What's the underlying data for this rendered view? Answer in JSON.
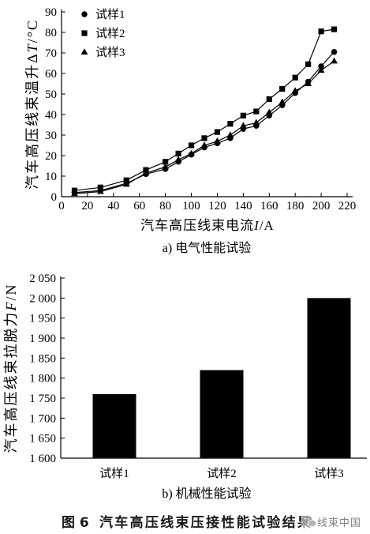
{
  "chart_data": [
    {
      "type": "line",
      "subcaption": "a) 电气性能试验",
      "xlabel": "汽车高压线束电流I/A",
      "ylabel": "汽车高压线束温升ΔT/°C",
      "xlim": [
        0,
        220
      ],
      "ylim": [
        0,
        90
      ],
      "xticks": [
        0,
        20,
        40,
        60,
        80,
        100,
        120,
        140,
        160,
        180,
        200,
        220
      ],
      "yticks": [
        0,
        10,
        20,
        30,
        40,
        50,
        60,
        70,
        80,
        90
      ],
      "grid": false,
      "legend_position": "top-left",
      "line_color": "#000000",
      "x": [
        10,
        30,
        50,
        65,
        80,
        90,
        100,
        110,
        120,
        130,
        140,
        150,
        160,
        170,
        180,
        190,
        200,
        210
      ],
      "series": [
        {
          "name": "试样1",
          "marker": "circle",
          "values": [
            2,
            3,
            6.5,
            11,
            13.5,
            17,
            20.5,
            24,
            26,
            28.5,
            33,
            34.5,
            39.5,
            44.5,
            50.5,
            56,
            63.5,
            70.5
          ]
        },
        {
          "name": "试样2",
          "marker": "square",
          "values": [
            3,
            4.5,
            8,
            13,
            17,
            21,
            25,
            28.5,
            31.5,
            35.5,
            39.5,
            41.5,
            47.5,
            52.5,
            58,
            64.5,
            80.5,
            81.5
          ]
        },
        {
          "name": "试样3",
          "marker": "triangle",
          "values": [
            1.5,
            2.5,
            6,
            11.5,
            14.5,
            18,
            21,
            25,
            27,
            30,
            34.5,
            36,
            41,
            46,
            51.5,
            55,
            61.5,
            66
          ]
        }
      ]
    },
    {
      "type": "bar",
      "subcaption": "b) 机械性能试验",
      "ylabel": "汽车高压线束拉脱力F/N",
      "ylim": [
        1600,
        2050
      ],
      "yticks": [
        1600,
        1650,
        1700,
        1750,
        1800,
        1850,
        1900,
        1950,
        2000,
        2050
      ],
      "ytick_labels": [
        "1 600",
        "1 650",
        "1 700",
        "1 750",
        "1 800",
        "1 850",
        "1 900",
        "1 950",
        "2 000",
        "2 050"
      ],
      "grid": false,
      "bar_color": "#000000",
      "categories": [
        "试样1",
        "试样2",
        "试样3"
      ],
      "values": [
        1760,
        1820,
        2000
      ]
    }
  ],
  "caption": {
    "label": "图 6",
    "text": "汽车高压线束压接性能试验结果"
  },
  "watermark": {
    "icon": "wechat-icon",
    "text": "线束中国"
  }
}
